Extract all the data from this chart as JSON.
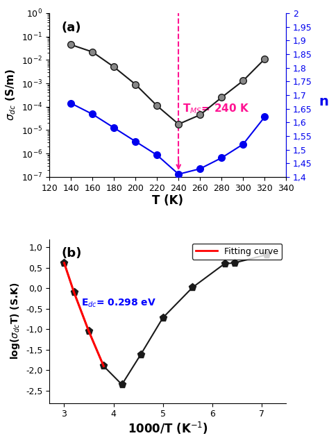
{
  "title_a": "(a)",
  "title_b": "(b)",
  "T_black": [
    140,
    160,
    180,
    200,
    220,
    240,
    260,
    280,
    300,
    320
  ],
  "sigma_dc": [
    0.045,
    0.022,
    0.005,
    0.0009,
    0.00011,
    1.8e-05,
    4.5e-05,
    0.00025,
    0.0013,
    0.011
  ],
  "n_values": [
    1.67,
    1.63,
    1.58,
    1.53,
    1.48,
    1.41,
    1.43,
    1.47,
    1.52,
    1.62
  ],
  "T_annotation": 240,
  "annotation_text": "T$_{MS}$= 240 K",
  "annotation_color": "#FF1493",
  "xlabel_a": "T (K)",
  "ylabel_a": "$\\sigma_{dc}$ (S/m)",
  "ylabel_a2": "n",
  "xlim_a": [
    120,
    340
  ],
  "ylim_a": [
    1e-07,
    1.0
  ],
  "xticks_a": [
    120,
    140,
    160,
    180,
    200,
    220,
    240,
    260,
    280,
    300,
    320,
    340
  ],
  "yticks_n": [
    1.4,
    1.45,
    1.5,
    1.55,
    1.6,
    1.65,
    1.7,
    1.75,
    1.8,
    1.85,
    1.9,
    1.95,
    2.0
  ],
  "x_b": [
    3.0,
    3.2,
    3.5,
    3.8,
    4.17,
    4.55,
    5.0,
    5.6,
    6.25,
    6.45,
    7.1
  ],
  "y_b": [
    0.62,
    -0.1,
    -1.05,
    -1.9,
    -2.35,
    -1.62,
    -0.72,
    0.02,
    0.6,
    0.62,
    0.82
  ],
  "fit_x": [
    3.0,
    3.2,
    3.5,
    3.8
  ],
  "fit_y": [
    0.62,
    -0.1,
    -1.05,
    -1.9
  ],
  "fit_color": "#FF0000",
  "fit_label": "Fitting curve",
  "edc_text": "E$_{dc}$= 0.298 eV",
  "edc_color": "#0000FF",
  "xlabel_b": "1000/T (K$^{-1}$)",
  "ylabel_b": "log($\\sigma_{dc}$T) (S.K)",
  "xlim_b": [
    2.7,
    7.5
  ],
  "ylim_b": [
    -2.8,
    1.2
  ],
  "xticks_b": [
    3,
    4,
    5,
    6,
    7
  ],
  "yticks_b": [
    -2.5,
    -2.0,
    -1.5,
    -1.0,
    -0.5,
    0.0,
    0.5,
    1.0
  ],
  "black_color": "#1a1a1a",
  "blue_color": "#0000EE",
  "bg_color": "#ffffff",
  "marker_face_black": "#888888",
  "marker_face_blue": "#0000EE"
}
